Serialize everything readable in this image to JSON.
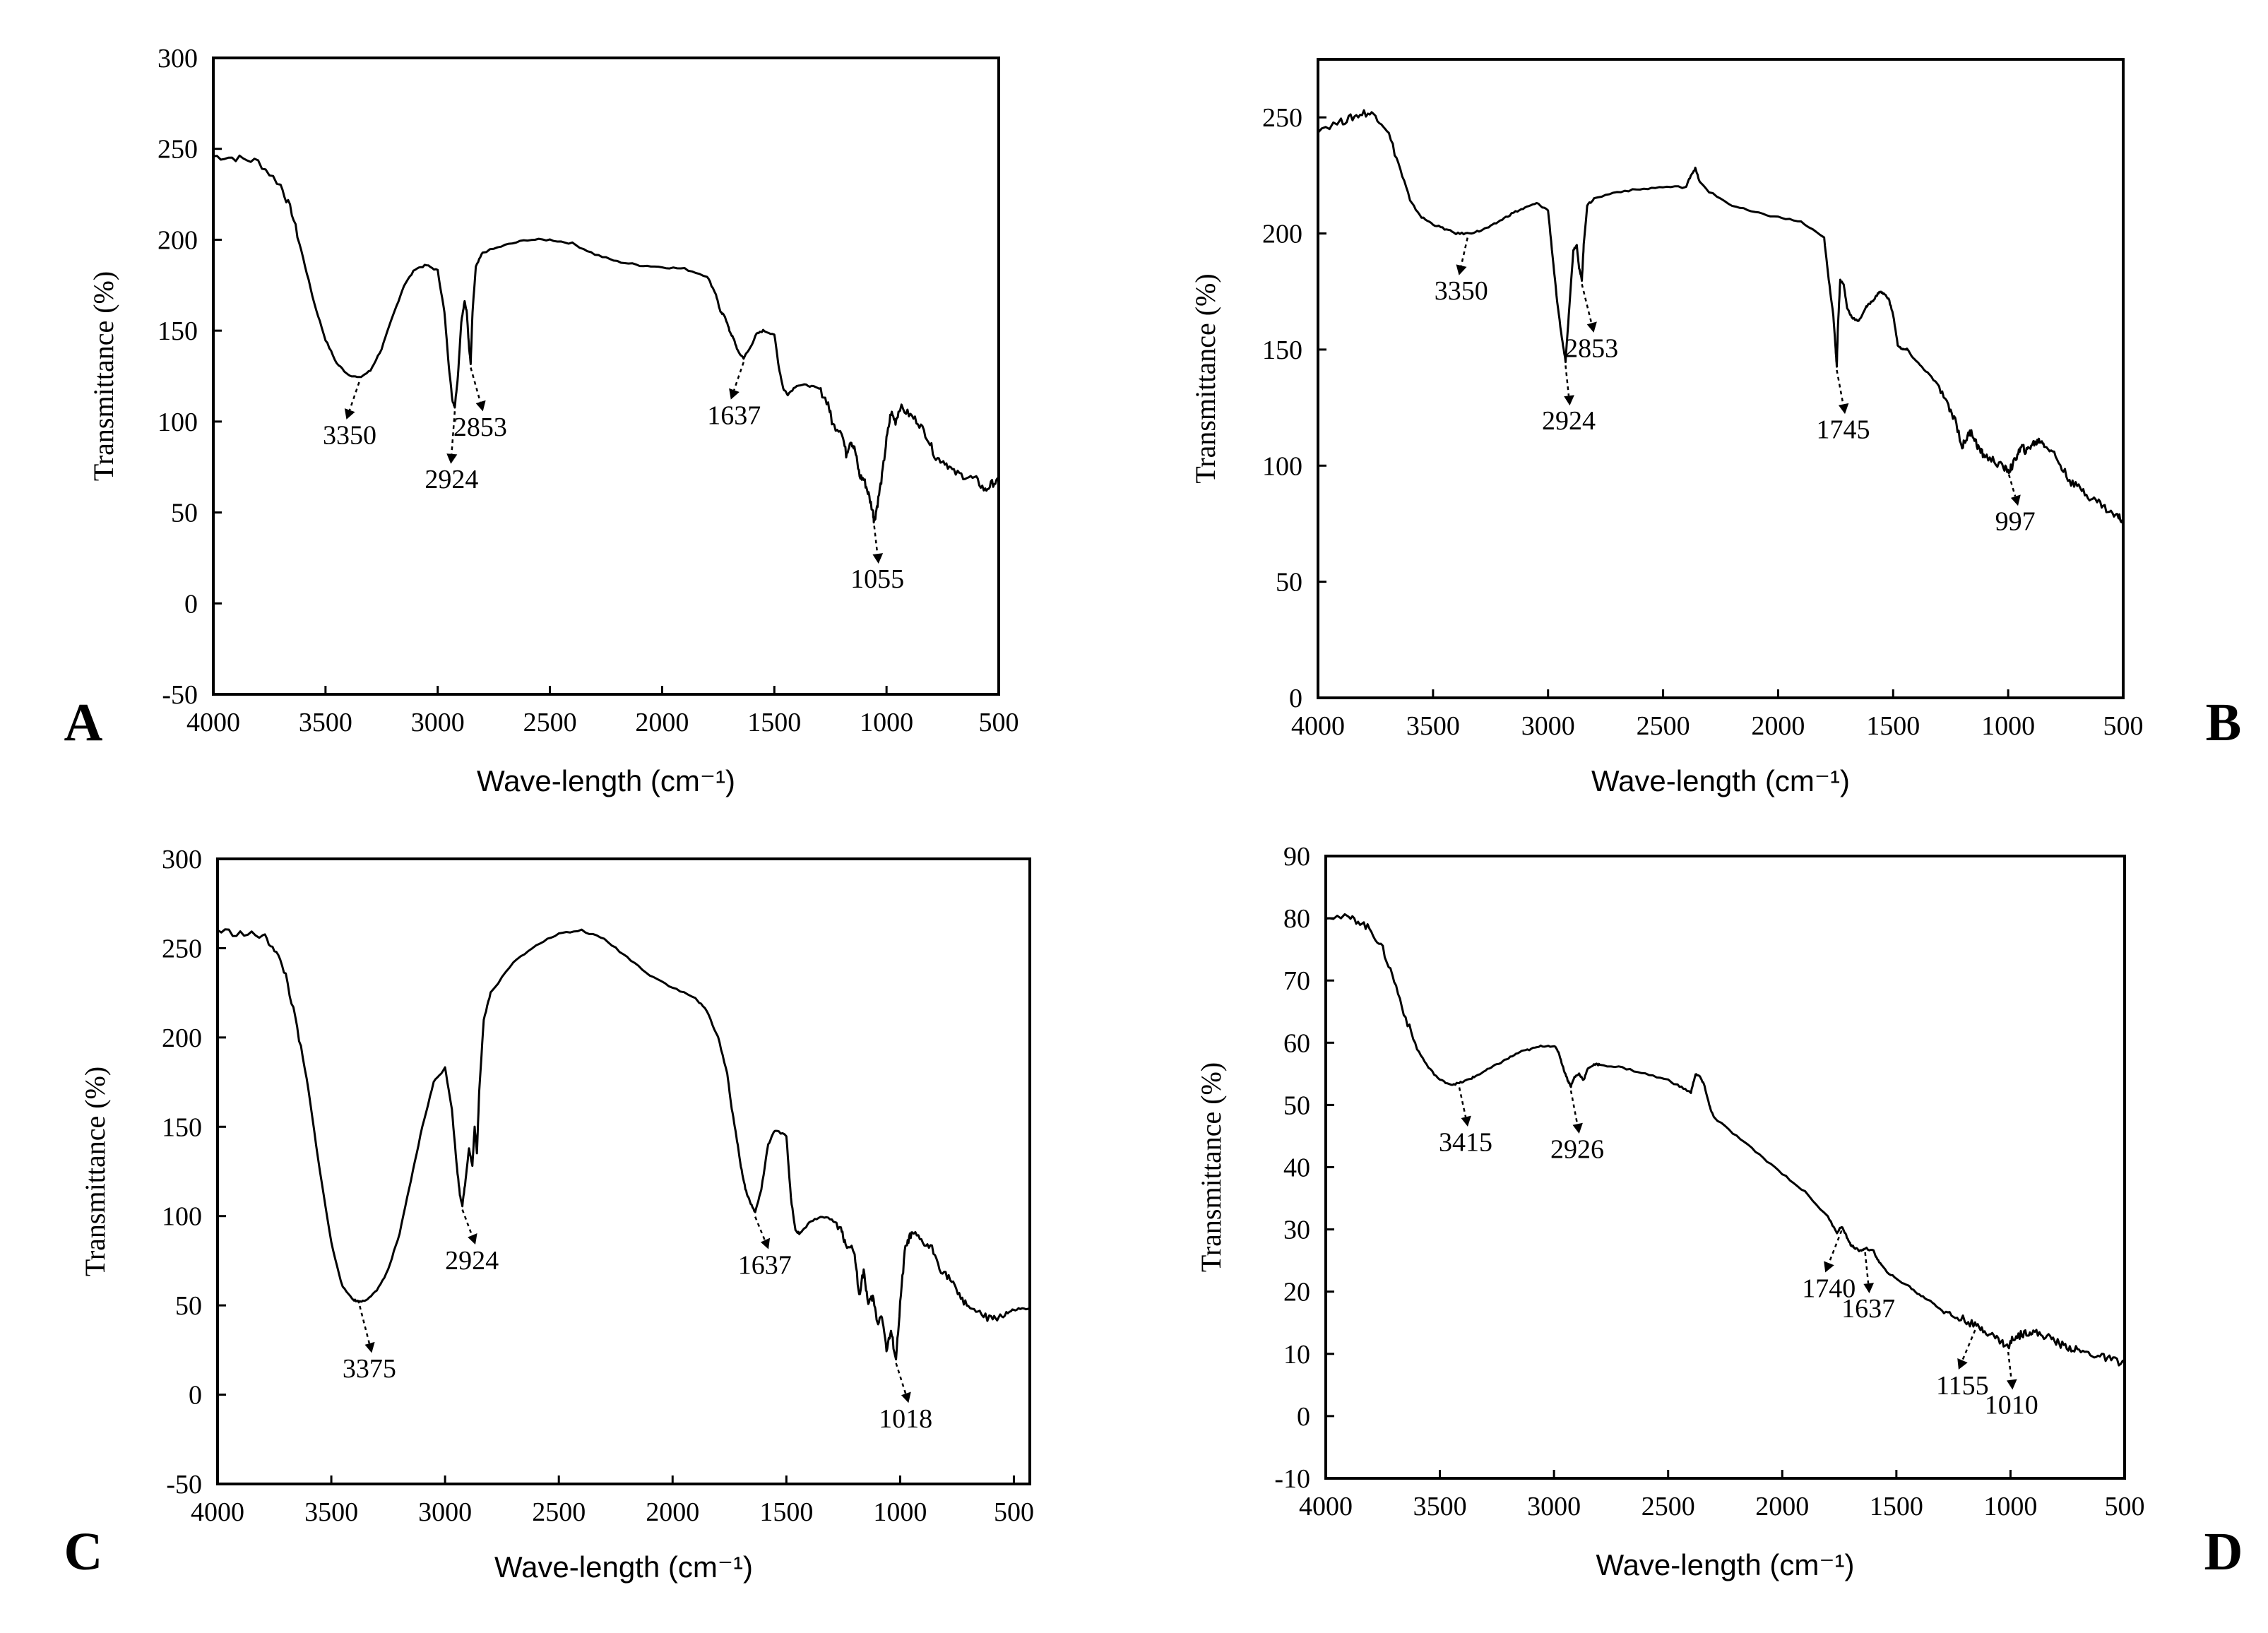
{
  "chart_data": [
    {
      "type": "line",
      "panel": "A",
      "xlabel": "Wave-length (cm⁻¹)",
      "ylabel": "Transmittance (%)",
      "xlim": [
        4000,
        500
      ],
      "ylim": [
        -50,
        300
      ],
      "xticks": [
        4000,
        3500,
        3000,
        2500,
        2000,
        1500,
        1000,
        500
      ],
      "yticks": [
        -50,
        0,
        50,
        100,
        150,
        200,
        250,
        300
      ],
      "series": [
        {
          "name": "A",
          "x": [
            4000,
            3900,
            3800,
            3700,
            3650,
            3600,
            3550,
            3500,
            3450,
            3400,
            3350,
            3300,
            3250,
            3200,
            3150,
            3100,
            3050,
            3000,
            2970,
            2950,
            2935,
            2924,
            2910,
            2895,
            2880,
            2870,
            2860,
            2853,
            2845,
            2830,
            2800,
            2700,
            2600,
            2500,
            2400,
            2300,
            2200,
            2100,
            2000,
            1900,
            1800,
            1760,
            1740,
            1720,
            1700,
            1680,
            1660,
            1637,
            1610,
            1580,
            1550,
            1500,
            1480,
            1460,
            1440,
            1400,
            1350,
            1300,
            1260,
            1240,
            1200,
            1180,
            1160,
            1140,
            1120,
            1100,
            1080,
            1060,
            1055,
            1040,
            1020,
            1000,
            980,
            960,
            940,
            900,
            860,
            820,
            780,
            740,
            700,
            650,
            600,
            560,
            530,
            500
          ],
          "y": [
            246,
            245,
            243,
            230,
            215,
            190,
            165,
            145,
            132,
            126,
            124,
            128,
            140,
            158,
            175,
            184,
            186,
            183,
            160,
            130,
            112,
            108,
            125,
            155,
            166,
            160,
            140,
            132,
            160,
            185,
            193,
            197,
            200,
            200,
            198,
            192,
            188,
            186,
            185,
            184,
            180,
            170,
            160,
            158,
            150,
            145,
            138,
            135,
            140,
            148,
            150,
            148,
            130,
            118,
            115,
            120,
            120,
            118,
            110,
            98,
            95,
            82,
            90,
            84,
            70,
            68,
            60,
            50,
            45,
            55,
            70,
            90,
            105,
            100,
            108,
            104,
            100,
            92,
            80,
            78,
            72,
            70,
            68,
            62,
            66,
            67
          ]
        }
      ],
      "annotations": [
        {
          "label": "3350",
          "x": 3350,
          "y": 124
        },
        {
          "label": "2924",
          "x": 2924,
          "y": 108
        },
        {
          "label": "2853",
          "x": 2853,
          "y": 132
        },
        {
          "label": "1637",
          "x": 1637,
          "y": 135
        },
        {
          "label": "1055",
          "x": 1055,
          "y": 45
        }
      ]
    },
    {
      "type": "line",
      "panel": "B",
      "xlabel": "Wave-length (cm⁻¹)",
      "ylabel": "Transmittance (%)",
      "xlim": [
        4000,
        500
      ],
      "ylim": [
        0,
        275
      ],
      "xticks": [
        4000,
        3500,
        3000,
        2500,
        2000,
        1500,
        1000,
        500
      ],
      "yticks": [
        0,
        50,
        100,
        150,
        200,
        250
      ],
      "series": [
        {
          "name": "B",
          "x": [
            4000,
            3900,
            3850,
            3800,
            3750,
            3700,
            3650,
            3600,
            3550,
            3500,
            3450,
            3400,
            3350,
            3300,
            3250,
            3200,
            3150,
            3100,
            3050,
            3000,
            2980,
            2960,
            2940,
            2924,
            2910,
            2890,
            2875,
            2865,
            2853,
            2845,
            2830,
            2800,
            2700,
            2600,
            2500,
            2400,
            2380,
            2360,
            2340,
            2300,
            2200,
            2100,
            2000,
            1900,
            1800,
            1780,
            1760,
            1750,
            1745,
            1740,
            1730,
            1715,
            1700,
            1680,
            1650,
            1620,
            1600,
            1580,
            1560,
            1540,
            1520,
            1500,
            1480,
            1460,
            1440,
            1400,
            1350,
            1300,
            1260,
            1230,
            1200,
            1180,
            1160,
            1140,
            1120,
            1100,
            1060,
            1020,
            997,
            980,
            960,
            940,
            920,
            900,
            880,
            860,
            840,
            800,
            760,
            720,
            680,
            640,
            600,
            560,
            520,
            500
          ],
          "y": [
            245,
            248,
            250,
            252,
            251,
            245,
            230,
            214,
            207,
            204,
            202,
            200,
            200,
            201,
            203,
            206,
            209,
            211,
            213,
            210,
            190,
            170,
            155,
            145,
            165,
            193,
            195,
            185,
            180,
            195,
            212,
            215,
            218,
            219,
            220,
            220,
            225,
            228,
            222,
            218,
            212,
            209,
            207,
            205,
            198,
            180,
            165,
            150,
            143,
            160,
            180,
            178,
            168,
            164,
            162,
            168,
            170,
            172,
            175,
            174,
            172,
            165,
            152,
            150,
            150,
            145,
            140,
            134,
            125,
            120,
            108,
            112,
            115,
            110,
            106,
            104,
            102,
            99,
            98,
            100,
            105,
            108,
            106,
            109,
            110,
            111,
            109,
            105,
            98,
            92,
            90,
            86,
            84,
            80,
            78,
            76
          ]
        }
      ],
      "annotations": [
        {
          "label": "3350",
          "x": 3350,
          "y": 200
        },
        {
          "label": "2924",
          "x": 2924,
          "y": 145
        },
        {
          "label": "2853",
          "x": 2853,
          "y": 180
        },
        {
          "label": "1745",
          "x": 1745,
          "y": 143
        },
        {
          "label": "997",
          "x": 997,
          "y": 98
        }
      ]
    },
    {
      "type": "line",
      "panel": "C",
      "xlabel": "Wave-length (cm⁻¹)",
      "ylabel": "Transmittance (%)",
      "xlim": [
        4000,
        430
      ],
      "ylim": [
        -50,
        300
      ],
      "xticks": [
        4000,
        3500,
        3000,
        2500,
        2000,
        1500,
        1000,
        500
      ],
      "yticks": [
        -50,
        0,
        50,
        100,
        150,
        200,
        250,
        300
      ],
      "series": [
        {
          "name": "C",
          "x": [
            4000,
            3900,
            3800,
            3750,
            3700,
            3650,
            3600,
            3550,
            3500,
            3450,
            3400,
            3375,
            3350,
            3300,
            3250,
            3200,
            3150,
            3100,
            3050,
            3000,
            2970,
            2950,
            2935,
            2924,
            2910,
            2895,
            2880,
            2870,
            2860,
            2850,
            2830,
            2800,
            2700,
            2600,
            2500,
            2400,
            2300,
            2200,
            2100,
            2000,
            1900,
            1850,
            1800,
            1760,
            1740,
            1720,
            1700,
            1680,
            1660,
            1637,
            1610,
            1580,
            1550,
            1500,
            1480,
            1460,
            1440,
            1400,
            1350,
            1300,
            1260,
            1240,
            1200,
            1180,
            1160,
            1140,
            1120,
            1100,
            1080,
            1060,
            1040,
            1018,
            1000,
            980,
            960,
            940,
            900,
            860,
            820,
            780,
            740,
            700,
            650,
            600,
            560,
            520,
            480,
            430
          ],
          "y": [
            260,
            258,
            257,
            250,
            235,
            205,
            170,
            125,
            85,
            60,
            53,
            52,
            53,
            58,
            70,
            90,
            120,
            150,
            175,
            183,
            160,
            130,
            112,
            106,
            120,
            138,
            128,
            150,
            135,
            170,
            210,
            225,
            242,
            252,
            258,
            260,
            255,
            245,
            235,
            228,
            222,
            215,
            200,
            180,
            160,
            145,
            128,
            115,
            108,
            102,
            115,
            140,
            148,
            145,
            110,
            92,
            90,
            96,
            100,
            98,
            92,
            85,
            80,
            55,
            70,
            50,
            55,
            40,
            45,
            25,
            35,
            20,
            50,
            80,
            88,
            90,
            85,
            82,
            70,
            65,
            55,
            50,
            45,
            42,
            44,
            46,
            48,
            48
          ]
        }
      ],
      "annotations": [
        {
          "label": "3375",
          "x": 3375,
          "y": 52
        },
        {
          "label": "2924",
          "x": 2924,
          "y": 106
        },
        {
          "label": "1637",
          "x": 1637,
          "y": 102
        },
        {
          "label": "1018",
          "x": 1018,
          "y": 20
        }
      ]
    },
    {
      "type": "line",
      "panel": "D",
      "xlabel": "Wave-length (cm⁻¹)",
      "ylabel": "Transmittance (%)",
      "xlim": [
        4000,
        500
      ],
      "ylim": [
        -10,
        90
      ],
      "xticks": [
        4000,
        3500,
        3000,
        2500,
        2000,
        1500,
        1000,
        500
      ],
      "yticks": [
        -10,
        0,
        10,
        20,
        30,
        40,
        50,
        60,
        70,
        80,
        90
      ],
      "series": [
        {
          "name": "D",
          "x": [
            4000,
            3900,
            3850,
            3800,
            3750,
            3700,
            3650,
            3600,
            3550,
            3500,
            3450,
            3415,
            3380,
            3350,
            3300,
            3250,
            3200,
            3150,
            3100,
            3050,
            3000,
            2980,
            2960,
            2940,
            2926,
            2910,
            2890,
            2870,
            2850,
            2820,
            2800,
            2700,
            2600,
            2500,
            2450,
            2400,
            2380,
            2360,
            2340,
            2320,
            2300,
            2200,
            2100,
            2000,
            1900,
            1800,
            1760,
            1740,
            1720,
            1700,
            1680,
            1660,
            1637,
            1600,
            1580,
            1550,
            1500,
            1450,
            1400,
            1350,
            1300,
            1250,
            1200,
            1155,
            1120,
            1080,
            1040,
            1010,
            990,
            960,
            930,
            900,
            860,
            820,
            780,
            740,
            700,
            650,
            600,
            550,
            500
          ],
          "y": [
            80.5,
            80,
            79.5,
            78,
            75,
            70,
            64,
            59,
            56,
            54,
            53.3,
            53.5,
            54,
            54.5,
            55.5,
            56.5,
            57.5,
            58.5,
            59,
            59.5,
            59.5,
            58.5,
            56,
            54,
            53,
            54.5,
            55,
            54,
            56,
            56.5,
            56.5,
            56,
            55,
            54,
            53,
            52,
            55,
            54.5,
            53,
            50,
            48,
            45,
            42,
            39,
            36,
            32,
            29.5,
            30.5,
            29,
            27.5,
            27,
            26.5,
            27,
            26.5,
            25,
            23.5,
            22,
            21,
            19.5,
            18.5,
            17,
            16,
            15.5,
            14.5,
            14,
            13,
            12,
            11,
            12.5,
            13,
            13.5,
            13.5,
            13,
            12.5,
            11.5,
            11,
            10.5,
            10,
            9.5,
            9,
            8.5
          ]
        }
      ],
      "annotations": [
        {
          "label": "3415",
          "x": 3415,
          "y": 53.5
        },
        {
          "label": "2926",
          "x": 2926,
          "y": 53
        },
        {
          "label": "1740",
          "x": 1740,
          "y": 30.5
        },
        {
          "label": "1637",
          "x": 1637,
          "y": 27
        },
        {
          "label": "1155",
          "x": 1155,
          "y": 14.5
        },
        {
          "label": "1010",
          "x": 1010,
          "y": 11
        }
      ]
    }
  ]
}
